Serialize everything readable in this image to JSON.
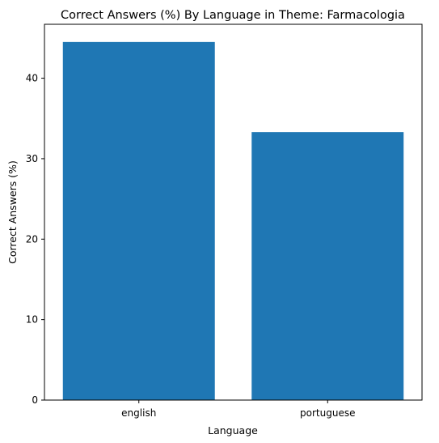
{
  "chart_data": {
    "type": "bar",
    "title": "Correct Answers (%) By Language in Theme: Farmacologia",
    "xlabel": "Language",
    "ylabel": "Correct Answers (%)",
    "categories": [
      "english",
      "portuguese"
    ],
    "values": [
      44.5,
      33.3
    ],
    "ylim": [
      0,
      46.7
    ],
    "yticks": [
      0,
      10,
      20,
      30,
      40
    ],
    "bar_color": "#1f77b4",
    "grid": false,
    "legend": "none"
  }
}
